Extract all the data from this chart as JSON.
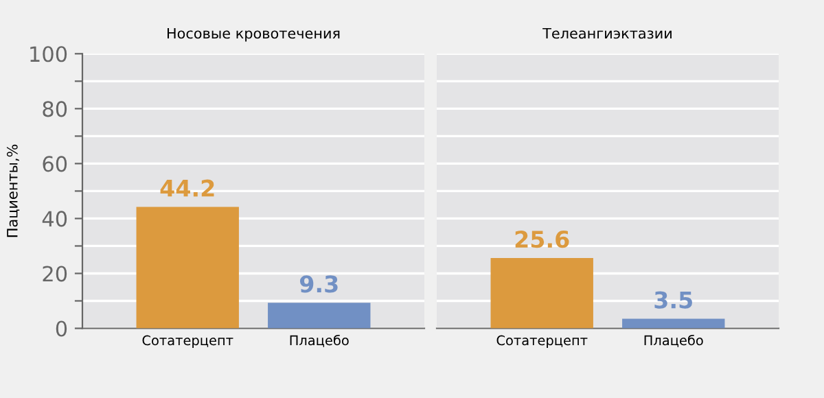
{
  "chart_data": [
    {
      "type": "bar",
      "title": "Носовые кровотечения",
      "ylabel": "Пациенты,%",
      "categories": [
        "Сотатерцепт",
        "Плацебо"
      ],
      "values": [
        44.2,
        9.3
      ],
      "colors": [
        "#dc9a3e",
        "#7190c4"
      ],
      "data_labels": true,
      "ylim": [
        0,
        100
      ],
      "yticks": [
        0,
        {
          "value": 10,
          "label": null
        },
        20,
        {
          "value": 30,
          "label": null
        },
        40,
        {
          "value": 50,
          "label": null
        },
        60,
        {
          "value": 70,
          "label": null
        },
        80,
        {
          "value": 90,
          "label": null
        },
        100
      ],
      "grid": "y"
    },
    {
      "type": "bar",
      "title": "Телеангиэктазии",
      "categories": [
        "Сотатерцепт",
        "Плацебо"
      ],
      "values": [
        25.6,
        3.5
      ],
      "colors": [
        "#dc9a3e",
        "#7190c4"
      ],
      "data_labels": true,
      "ylim": [
        0,
        100
      ],
      "yticks": [
        0,
        {
          "value": 10,
          "label": null
        },
        20,
        {
          "value": 30,
          "label": null
        },
        40,
        {
          "value": 50,
          "label": null
        },
        60,
        {
          "value": 70,
          "label": null
        },
        80,
        {
          "value": 90,
          "label": null
        },
        100
      ],
      "grid": "y",
      "tick_labels": "x"
    }
  ]
}
